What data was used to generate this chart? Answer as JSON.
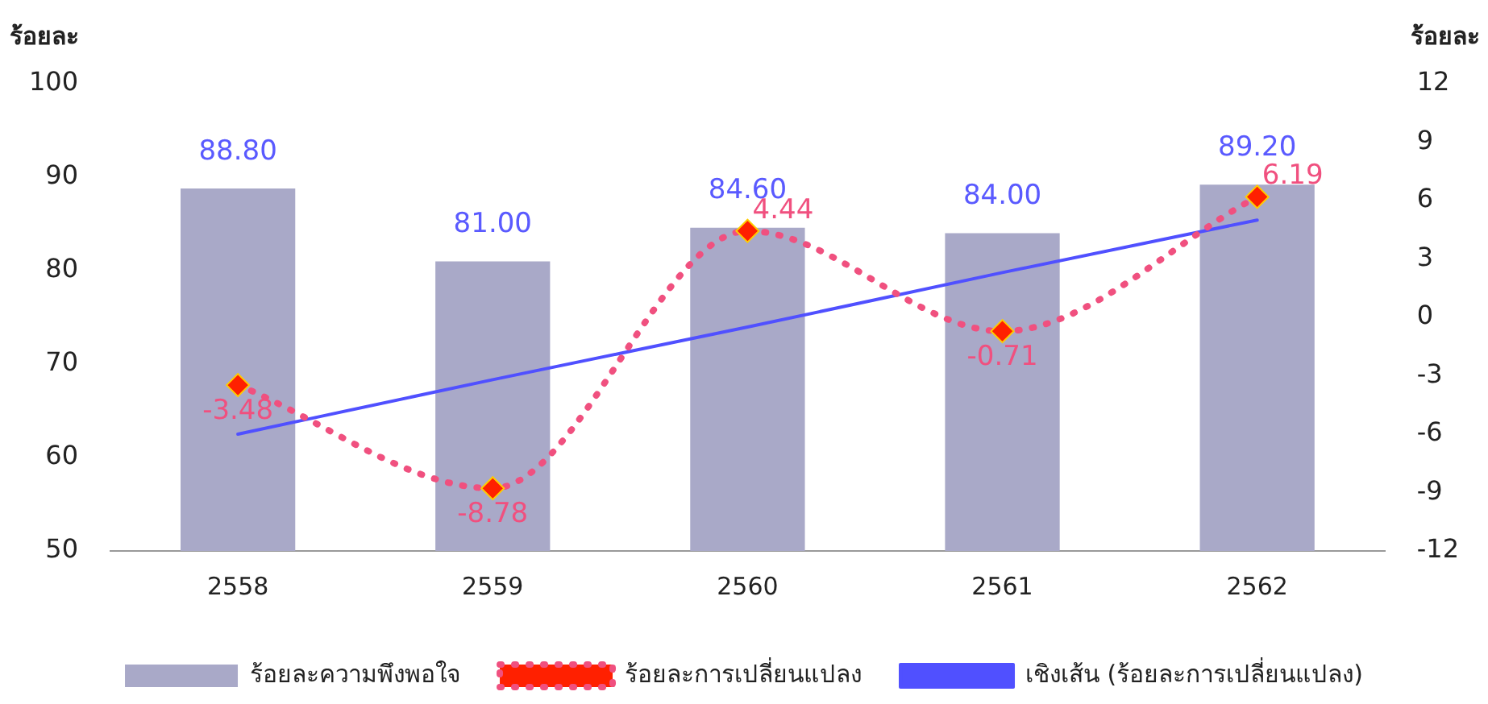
{
  "chart_data": {
    "type": "bar",
    "ylabel": "ร้อยละ",
    "y2label": "ร้อยละ",
    "categories": [
      "2558",
      "2559",
      "2560",
      "2561",
      "2562"
    ],
    "series": [
      {
        "name": "ร้อยละความพึงพอใจ",
        "color": "#a9a9c8",
        "values": [
          88.8,
          81.0,
          84.6,
          84.0,
          89.2
        ],
        "value_labels": [
          "88.80",
          "81.00",
          "84.60",
          "84.00",
          "89.20"
        ]
      },
      {
        "name": "ร้อยละการเปลี่ยนแปลง",
        "type": "line",
        "axis": "y2",
        "color": "#f0507f",
        "marker": "diamond",
        "line_style": "dotted",
        "values": [
          -3.48,
          -8.78,
          4.44,
          -0.71,
          6.19
        ],
        "value_labels": [
          "-3.48",
          "-8.78",
          "4.44",
          "-0.71",
          "6.19"
        ]
      },
      {
        "name": "เชิงเส้น (ร้อยละการเปลี่ยนแปลง)",
        "type": "line",
        "axis": "y2",
        "color": "#5050ff",
        "marker": "none",
        "line_style": "solid",
        "values": [
          -6.0,
          -3.2,
          -0.5,
          2.3,
          5.0
        ]
      }
    ],
    "ylim": [
      50,
      100
    ],
    "yticks": [
      50,
      60,
      70,
      80,
      90,
      100
    ],
    "y2lim": [
      -12,
      12
    ],
    "y2ticks": [
      -12,
      -9,
      -6,
      -3,
      0,
      3,
      6,
      9,
      12
    ],
    "grid": false,
    "legend": "bottom"
  }
}
